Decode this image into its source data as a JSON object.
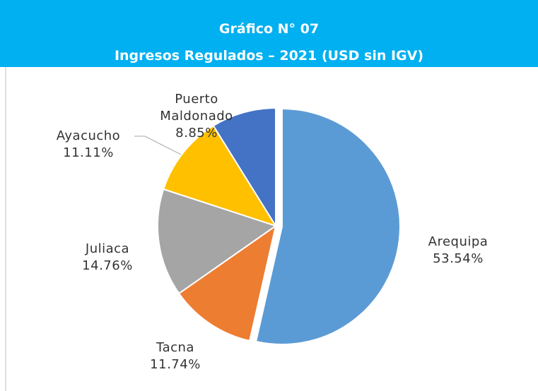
{
  "chart_data": {
    "type": "pie",
    "title": "Gráfico N° 07",
    "subtitle": "Ingresos Regulados – 2021 (USD sin IGV)",
    "categories": [
      "Arequipa",
      "Tacna",
      "Juliaca",
      "Ayacucho",
      "Puerto Maldonado"
    ],
    "values": [
      53.54,
      11.74,
      14.76,
      11.11,
      8.85
    ],
    "value_labels": [
      "53.54%",
      "11.74%",
      "14.76%",
      "11.11%",
      "8.85%"
    ],
    "colors": [
      "#5b9bd5",
      "#ed7d31",
      "#a5a5a5",
      "#ffc000",
      "#4472c4"
    ]
  }
}
